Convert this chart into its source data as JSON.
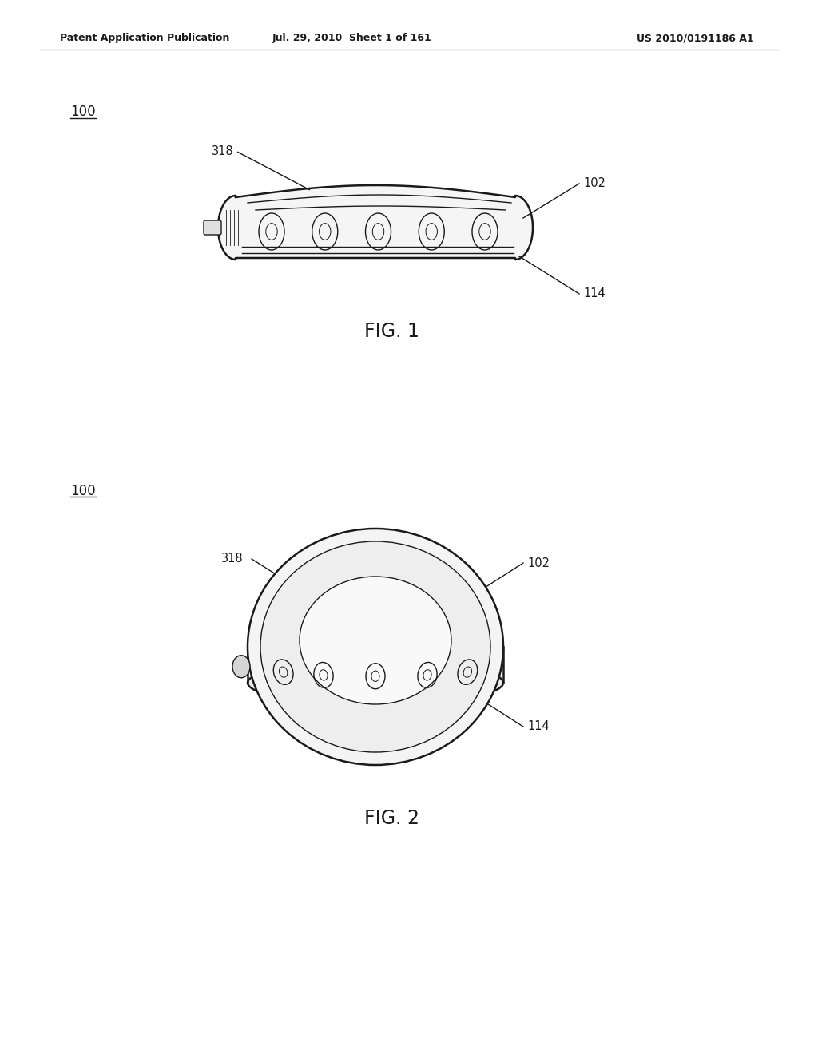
{
  "bg_color": "#ffffff",
  "line_color": "#1a1a1a",
  "header_left": "Patent Application Publication",
  "header_mid": "Jul. 29, 2010  Sheet 1 of 161",
  "header_right": "US 2010/0191186 A1",
  "fig1_label": "FIG. 1",
  "fig2_label": "FIG. 2",
  "ref_100": "100",
  "ref_318_fig1": "318",
  "ref_102_fig1": "102",
  "ref_114_fig1": "114",
  "ref_318_fig2": "318",
  "ref_102_fig2": "102",
  "ref_114_fig2": "114"
}
